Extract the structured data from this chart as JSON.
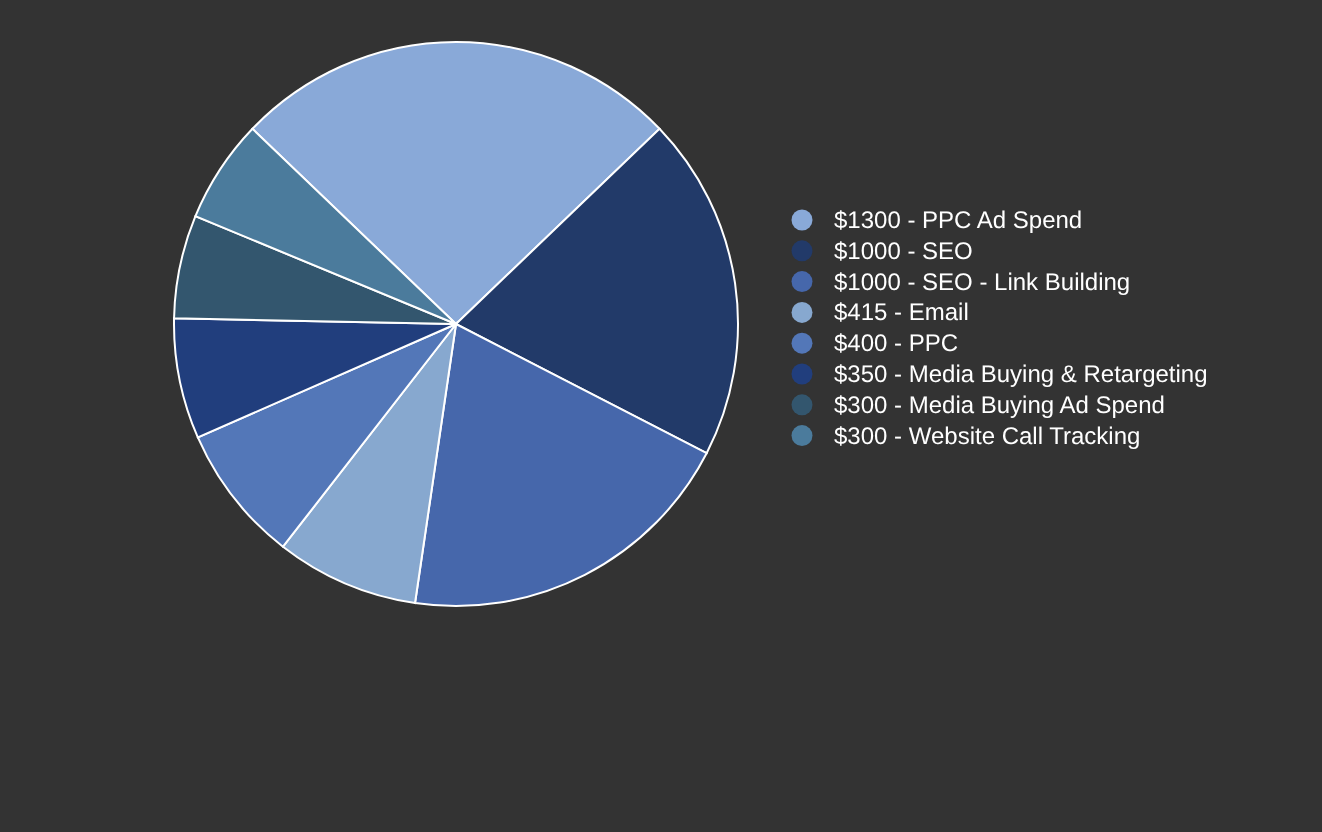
{
  "chart_data": {
    "type": "pie",
    "categories": [
      "$1300 - PPC Ad Spend",
      "$1000 - SEO",
      "$1000 - SEO - Link Building",
      "$415 - Email",
      "$400 - PPC",
      "$350 - Media Buying & Retargeting",
      "$300 - Media Buying Ad Spend",
      "$300 - Website Call Tracking"
    ],
    "values": [
      1300,
      1000,
      1000,
      415,
      400,
      350,
      300,
      300
    ],
    "colors": [
      "#89a9d8",
      "#223a69",
      "#4667ab",
      "#87a8cf",
      "#5377b8",
      "#213e7d",
      "#33566e",
      "#4b7b9c"
    ],
    "legend": "right"
  }
}
